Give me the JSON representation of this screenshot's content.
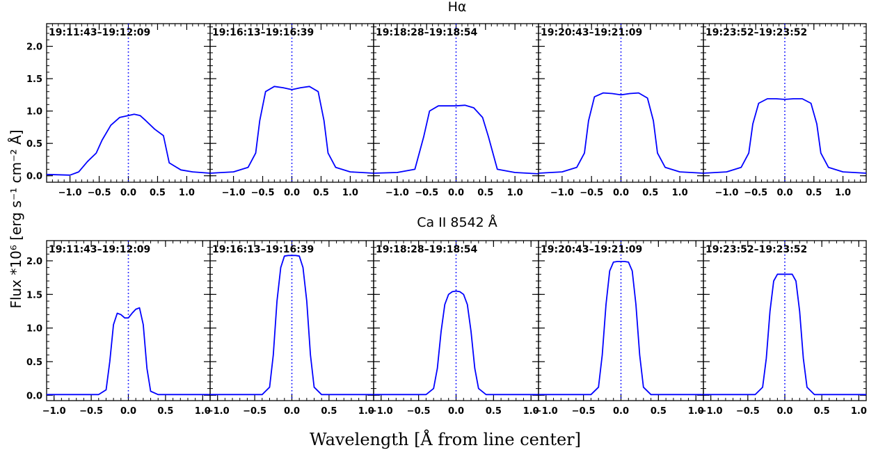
{
  "figure": {
    "ylabel": "Flux *10⁶ [erg s⁻¹ cm⁻² Å]",
    "xlabel": "Wavelength [Å from line center]"
  },
  "colors": {
    "line": "#0000ff",
    "reference": "#0000ff",
    "axes": "#000000"
  },
  "chart_data": [
    {
      "type": "line",
      "row": 0,
      "title": "Hα",
      "timestamps": [
        "19:11:43–19:12:09",
        "19:16:13–19:16:39",
        "19:18:28–19:18:54",
        "19:20:43–19:21:09",
        "19:23:52–19:23:52"
      ],
      "xlim": [
        -1.4,
        1.4
      ],
      "ylim": [
        -0.1,
        2.35
      ],
      "xticks": [
        -1.0,
        -0.5,
        0.0,
        0.5,
        1.0
      ],
      "xticklabels": [
        "−1.0",
        "−0.5",
        "0.0",
        "0.5",
        "1.0"
      ],
      "yticks": [
        0.0,
        0.5,
        1.0,
        1.5,
        2.0
      ],
      "yticklabels": [
        "0.0",
        "0.5",
        "1.0",
        "1.5",
        "2.0"
      ],
      "reference_x": 0.0,
      "series": [
        {
          "x": [
            -1.4,
            -1.0,
            -0.85,
            -0.7,
            -0.55,
            -0.45,
            -0.3,
            -0.15,
            0.0,
            0.1,
            0.2,
            0.3,
            0.45,
            0.6,
            0.7,
            0.9,
            1.1,
            1.4
          ],
          "y": [
            0.02,
            0.01,
            0.06,
            0.22,
            0.35,
            0.55,
            0.78,
            0.9,
            0.93,
            0.95,
            0.93,
            0.85,
            0.72,
            0.62,
            0.2,
            0.09,
            0.06,
            0.04
          ]
        },
        {
          "x": [
            -1.4,
            -1.0,
            -0.75,
            -0.62,
            -0.55,
            -0.45,
            -0.3,
            -0.15,
            0.0,
            0.15,
            0.3,
            0.45,
            0.55,
            0.62,
            0.75,
            1.0,
            1.4
          ],
          "y": [
            0.04,
            0.06,
            0.13,
            0.35,
            0.85,
            1.3,
            1.38,
            1.36,
            1.33,
            1.36,
            1.38,
            1.3,
            0.85,
            0.35,
            0.13,
            0.06,
            0.04
          ]
        },
        {
          "x": [
            -1.4,
            -1.0,
            -0.7,
            -0.55,
            -0.45,
            -0.3,
            -0.15,
            0.0,
            0.15,
            0.3,
            0.45,
            0.55,
            0.7,
            1.0,
            1.4
          ],
          "y": [
            0.04,
            0.05,
            0.1,
            0.6,
            1.0,
            1.08,
            1.08,
            1.08,
            1.09,
            1.05,
            0.9,
            0.6,
            0.1,
            0.05,
            0.03
          ]
        },
        {
          "x": [
            -1.4,
            -1.0,
            -0.75,
            -0.62,
            -0.55,
            -0.45,
            -0.3,
            -0.15,
            0.0,
            0.15,
            0.3,
            0.45,
            0.55,
            0.62,
            0.75,
            1.0,
            1.4
          ],
          "y": [
            0.04,
            0.06,
            0.13,
            0.35,
            0.85,
            1.22,
            1.28,
            1.27,
            1.25,
            1.27,
            1.28,
            1.2,
            0.85,
            0.35,
            0.13,
            0.06,
            0.04
          ]
        },
        {
          "x": [
            -1.4,
            -1.0,
            -0.75,
            -0.62,
            -0.55,
            -0.45,
            -0.3,
            -0.15,
            0.0,
            0.15,
            0.3,
            0.45,
            0.55,
            0.62,
            0.75,
            1.0,
            1.4
          ],
          "y": [
            0.04,
            0.06,
            0.13,
            0.35,
            0.8,
            1.12,
            1.19,
            1.19,
            1.18,
            1.19,
            1.19,
            1.12,
            0.8,
            0.35,
            0.13,
            0.06,
            0.04
          ]
        }
      ]
    },
    {
      "type": "line",
      "row": 1,
      "title": "Ca II 8542 Å",
      "timestamps": [
        "19:11:43–19:12:09",
        "19:16:13–19:16:39",
        "19:18:28–19:18:54",
        "19:20:43–19:21:09",
        "19:23:52–19:23:52"
      ],
      "xlim": [
        -1.1,
        1.1
      ],
      "ylim": [
        -0.08,
        2.3
      ],
      "xticks": [
        -1.0,
        -0.5,
        0.0,
        0.5,
        1.0
      ],
      "xticklabels": [
        "−1.0",
        "−0.5",
        "0.0",
        "0.5",
        "1.0"
      ],
      "yticks": [
        0.0,
        0.5,
        1.0,
        1.5,
        2.0
      ],
      "yticklabels": [
        "0.0",
        "0.5",
        "1.0",
        "1.5",
        "2.0"
      ],
      "reference_x": 0.0,
      "series": [
        {
          "x": [
            -1.1,
            -0.4,
            -0.3,
            -0.25,
            -0.2,
            -0.15,
            -0.1,
            -0.05,
            0.0,
            0.05,
            0.1,
            0.15,
            0.2,
            0.25,
            0.3,
            0.4,
            1.1
          ],
          "y": [
            0.01,
            0.01,
            0.08,
            0.5,
            1.05,
            1.22,
            1.2,
            1.15,
            1.15,
            1.22,
            1.28,
            1.3,
            1.05,
            0.4,
            0.06,
            0.01,
            0.01
          ]
        },
        {
          "x": [
            -1.1,
            -0.4,
            -0.3,
            -0.25,
            -0.2,
            -0.15,
            -0.1,
            -0.05,
            0.0,
            0.05,
            0.1,
            0.15,
            0.2,
            0.25,
            0.3,
            0.4,
            1.1
          ],
          "y": [
            0.01,
            0.01,
            0.12,
            0.6,
            1.4,
            1.9,
            2.07,
            2.08,
            2.08,
            2.08,
            2.07,
            1.9,
            1.4,
            0.6,
            0.12,
            0.01,
            0.01
          ]
        },
        {
          "x": [
            -1.1,
            -0.4,
            -0.3,
            -0.25,
            -0.2,
            -0.15,
            -0.1,
            -0.05,
            0.0,
            0.05,
            0.1,
            0.15,
            0.2,
            0.25,
            0.3,
            0.4,
            1.1
          ],
          "y": [
            0.01,
            0.01,
            0.1,
            0.4,
            0.95,
            1.35,
            1.5,
            1.54,
            1.55,
            1.54,
            1.5,
            1.35,
            0.95,
            0.4,
            0.1,
            0.01,
            0.01
          ]
        },
        {
          "x": [
            -1.1,
            -0.4,
            -0.3,
            -0.25,
            -0.2,
            -0.15,
            -0.1,
            -0.05,
            0.0,
            0.05,
            0.1,
            0.15,
            0.2,
            0.25,
            0.3,
            0.4,
            1.1
          ],
          "y": [
            0.01,
            0.01,
            0.12,
            0.6,
            1.35,
            1.85,
            1.98,
            1.99,
            1.99,
            1.99,
            1.98,
            1.85,
            1.35,
            0.6,
            0.12,
            0.01,
            0.01
          ]
        },
        {
          "x": [
            -1.1,
            -0.4,
            -0.3,
            -0.25,
            -0.2,
            -0.15,
            -0.1,
            -0.05,
            0.0,
            0.05,
            0.1,
            0.15,
            0.2,
            0.25,
            0.3,
            0.4,
            1.1
          ],
          "y": [
            0.01,
            0.01,
            0.12,
            0.55,
            1.25,
            1.7,
            1.8,
            1.8,
            1.8,
            1.8,
            1.8,
            1.7,
            1.25,
            0.55,
            0.12,
            0.01,
            0.01
          ]
        }
      ]
    }
  ]
}
